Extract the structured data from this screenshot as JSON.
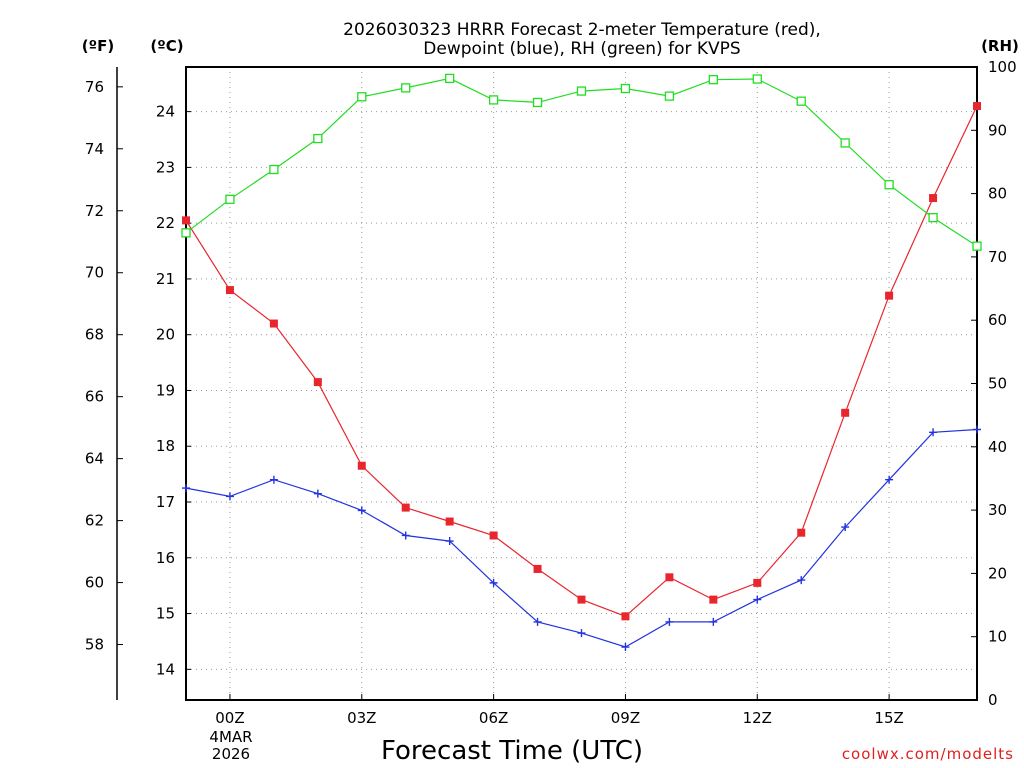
{
  "chart_data": {
    "type": "line",
    "title_line1": "2026030323 HRRR Forecast 2-meter Temperature (red),",
    "title_line2": "Dewpoint (blue), RH (green) for KVPS",
    "xlabel": "Forecast Time (UTC)",
    "date_label_line1": "4MAR",
    "date_label_line2": "2026",
    "credit": "coolwx.com/modelts",
    "unit_left_f": "(ºF)",
    "unit_left_c": "(ºC)",
    "unit_right": "(RH)",
    "x_hours": [
      -1,
      0,
      1,
      2,
      3,
      4,
      5,
      6,
      7,
      8,
      9,
      10,
      11,
      12,
      13,
      14,
      15,
      16,
      17
    ],
    "x_range": [
      -1,
      17
    ],
    "x_ticks": [
      {
        "hour": 0,
        "label": "00Z"
      },
      {
        "hour": 3,
        "label": "03Z"
      },
      {
        "hour": 6,
        "label": "06Z"
      },
      {
        "hour": 9,
        "label": "09Z"
      },
      {
        "hour": 12,
        "label": "12Z"
      },
      {
        "hour": 15,
        "label": "15Z"
      }
    ],
    "celsius_range": [
      13.45,
      24.8
    ],
    "celsius_ticks": [
      "14",
      "15",
      "16",
      "17",
      "18",
      "19",
      "20",
      "21",
      "22",
      "23",
      "24"
    ],
    "fahrenheit_ticks": [
      "58",
      "60",
      "62",
      "64",
      "66",
      "68",
      "70",
      "72",
      "74",
      "76"
    ],
    "rh_range": [
      0,
      100
    ],
    "rh_ticks": [
      "0",
      "10",
      "20",
      "30",
      "40",
      "50",
      "60",
      "70",
      "80",
      "90",
      "100"
    ],
    "series": [
      {
        "name": "Temperature",
        "unit": "C",
        "color": "#e8262e",
        "marker": "filled-square",
        "values": [
          22.05,
          20.8,
          20.2,
          19.15,
          17.65,
          16.9,
          16.65,
          16.4,
          15.8,
          15.25,
          14.95,
          15.65,
          15.25,
          15.55,
          16.45,
          18.6,
          20.7,
          22.45,
          24.1
        ]
      },
      {
        "name": "Dewpoint",
        "unit": "C",
        "color": "#2233e0",
        "marker": "plus",
        "values": [
          17.25,
          17.1,
          17.4,
          17.15,
          16.85,
          16.4,
          16.3,
          15.55,
          14.85,
          14.65,
          14.4,
          14.85,
          14.85,
          15.25,
          15.6,
          16.55,
          17.4,
          18.25,
          18.3
        ]
      },
      {
        "name": "RH",
        "unit": "%",
        "color": "#22dd22",
        "marker": "open-square",
        "values": [
          73.8,
          79.1,
          83.8,
          88.7,
          95.3,
          96.7,
          98.2,
          94.8,
          94.4,
          96.2,
          96.6,
          95.4,
          98.0,
          98.1,
          94.6,
          88.0,
          81.4,
          76.2,
          71.7
        ]
      }
    ]
  }
}
